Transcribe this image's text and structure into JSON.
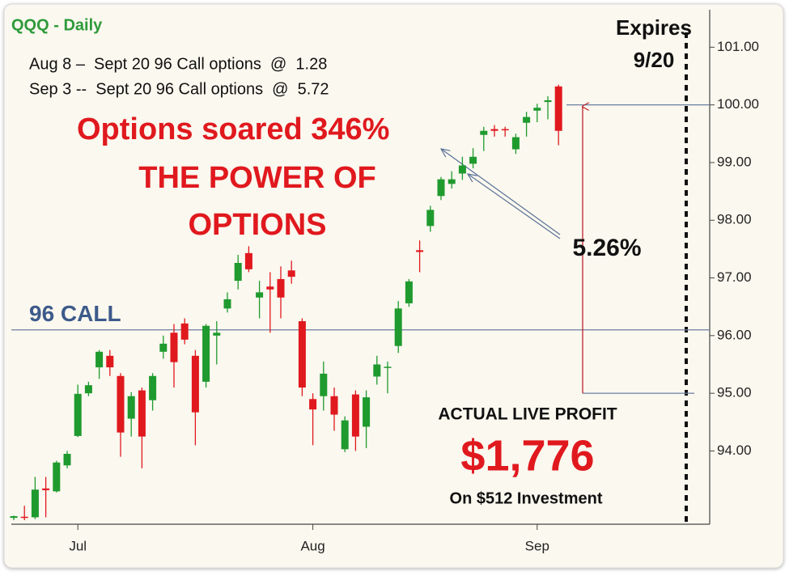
{
  "chart_data": {
    "type": "candlestick",
    "title": "QQQ - Daily",
    "notes": [
      "Aug 8 –  Sept 20 96 Call options  @  1.28",
      "Sep 3 --  Sept 20 96 Call options  @  5.72"
    ],
    "headline": [
      "Options soared 346%",
      "THE POWER OF",
      "OPTIONS"
    ],
    "expiry_label": [
      "Expires",
      "9/20"
    ],
    "profit_caption": "ACTUAL LIVE PROFIT",
    "profit": "$1,776",
    "investment": "On $512 Investment",
    "strike_line": {
      "label": "96 CALL",
      "value": 96.1
    },
    "move_arrow": {
      "from": 95,
      "to": 100,
      "label": "5.26%"
    },
    "categories": [
      null,
      null,
      null,
      null,
      null,
      null,
      "Jul",
      null,
      null,
      null,
      null,
      null,
      null,
      null,
      null,
      null,
      null,
      null,
      null,
      null,
      null,
      null,
      null,
      null,
      null,
      null,
      null,
      null,
      "Aug",
      null,
      null,
      null,
      null,
      null,
      null,
      null,
      null,
      null,
      null,
      null,
      null,
      null,
      null,
      null,
      null,
      null,
      null,
      null,
      null,
      "Sep",
      null,
      null,
      null,
      null,
      null,
      null,
      null,
      null,
      null,
      null,
      null,
      null,
      null,
      null,
      null,
      null
    ],
    "series": [
      {
        "up_color": "#1f9a2e",
        "down_color": "#e0191e",
        "open": [
          92.84,
          92.86,
          92.85,
          93.35,
          93.3,
          93.75,
          94.26,
          95.0,
          95.45,
          95.65,
          95.3,
          94.56,
          95.05,
          94.88,
          95.72,
          96.05,
          96.21,
          95.65,
          95.2,
          96.0,
          96.47,
          96.95,
          97.43,
          96.66,
          96.85,
          96.98,
          97.13,
          96.25,
          94.9,
          94.95,
          94.95,
          94.03,
          94.98,
          94.42,
          95.29,
          95.44,
          95.82,
          96.56,
          97.48,
          97.9,
          98.42,
          98.63,
          98.81,
          98.98,
          99.48,
          99.58,
          99.58,
          99.23,
          99.69,
          99.9,
          100.05,
          100.32,
          null,
          null,
          null,
          null,
          null,
          null,
          null,
          null,
          null,
          null,
          null,
          null,
          null,
          null
        ],
        "high": [
          92.88,
          93.05,
          93.55,
          93.55,
          93.83,
          94.0,
          95.15,
          95.2,
          95.75,
          95.75,
          95.35,
          95.02,
          95.1,
          95.35,
          96.0,
          96.2,
          96.3,
          95.75,
          96.2,
          96.25,
          96.75,
          97.4,
          97.55,
          96.95,
          97.1,
          97.2,
          97.3,
          96.3,
          95.0,
          95.55,
          95.1,
          94.6,
          95.05,
          95.05,
          95.65,
          95.55,
          96.6,
          96.98,
          97.65,
          98.25,
          98.75,
          98.85,
          99.1,
          99.25,
          99.62,
          99.65,
          99.62,
          99.5,
          99.88,
          100.02,
          100.15,
          100.35,
          null,
          null,
          null,
          null,
          null,
          null,
          null,
          null,
          null,
          null,
          null,
          null,
          null,
          null
        ],
        "low": [
          92.8,
          92.8,
          92.82,
          92.85,
          93.28,
          93.7,
          94.24,
          94.95,
          95.25,
          95.3,
          93.9,
          94.25,
          93.7,
          94.7,
          95.6,
          95.1,
          95.85,
          94.1,
          95.1,
          95.5,
          96.4,
          96.8,
          97.1,
          96.3,
          96.05,
          96.3,
          96.9,
          94.95,
          94.1,
          94.7,
          94.35,
          93.98,
          94.0,
          94.05,
          95.15,
          95.0,
          95.7,
          96.5,
          97.1,
          97.8,
          98.35,
          98.55,
          98.7,
          98.9,
          99.2,
          99.45,
          99.45,
          99.15,
          99.45,
          99.7,
          99.75,
          99.3,
          null,
          null,
          null,
          null,
          null,
          null,
          null,
          null,
          null,
          null,
          null,
          null,
          null,
          null
        ],
        "close": [
          92.87,
          92.85,
          93.33,
          93.32,
          93.8,
          93.95,
          94.99,
          95.14,
          95.72,
          95.45,
          94.32,
          94.95,
          94.25,
          95.3,
          95.86,
          95.54,
          95.93,
          94.67,
          96.17,
          96.05,
          96.63,
          97.26,
          97.15,
          96.75,
          96.8,
          96.66,
          97.02,
          95.1,
          94.72,
          95.34,
          94.63,
          94.53,
          94.25,
          94.93,
          95.5,
          95.46,
          96.47,
          96.94,
          97.45,
          98.18,
          98.71,
          98.71,
          98.95,
          99.1,
          99.55,
          99.55,
          99.56,
          99.44,
          99.79,
          99.95,
          100.08,
          99.55,
          null,
          null,
          null,
          null,
          null,
          null,
          null,
          null,
          null,
          null,
          null,
          null,
          null,
          null
        ]
      }
    ],
    "ylim": [
      92.73,
      101.65
    ],
    "yticks": [
      {
        "value": 94,
        "label": "94.00"
      },
      {
        "value": 95,
        "label": "95.00"
      },
      {
        "value": 96,
        "label": "96.00"
      },
      {
        "value": 97,
        "label": "97.00"
      },
      {
        "value": 98,
        "label": "98.00"
      },
      {
        "value": 99,
        "label": "99.00"
      },
      {
        "value": 100,
        "label": "100.00"
      },
      {
        "value": 101,
        "label": "101.00"
      }
    ],
    "grid": false
  }
}
